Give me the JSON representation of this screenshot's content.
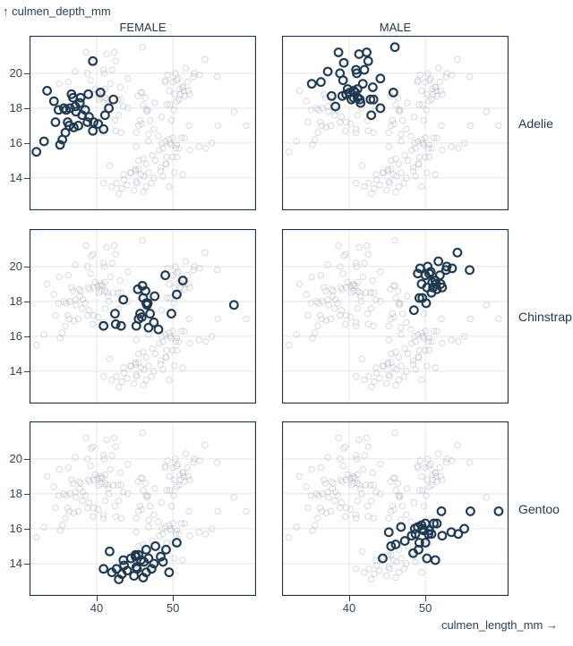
{
  "chart_data": {
    "type": "scatter",
    "description": "Faceted scatter plot of penguin culmen depth vs culmen length, faceted by sex (columns) and species (rows); each panel shows all penguins in light gray and the facet subset highlighted in dark navy rings",
    "x_axis": {
      "label": "culmen_length_mm →",
      "ticks": [
        40,
        50
      ],
      "domain": [
        31.2,
        60.9
      ]
    },
    "y_axis": {
      "label": "↑ culmen_depth_mm",
      "ticks": [
        14,
        16,
        18,
        20
      ],
      "domain": [
        12.15,
        22.15
      ]
    },
    "facets": {
      "columns": [
        "FEMALE",
        "MALE"
      ],
      "rows": [
        "Adelie",
        "Chinstrap",
        "Gentoo"
      ]
    },
    "style": {
      "highlight_color": "#1e384f",
      "background_point_color": "#aeb4bf",
      "grid_color": "#e2e5e9",
      "border_color": "#1c334a",
      "text_color": "#25384c"
    },
    "points_format": [
      "culmen_length_mm",
      "culmen_depth_mm"
    ],
    "groups": [
      {
        "species": "Adelie",
        "sex": "FEMALE",
        "points": [
          [
            32.1,
            15.5
          ],
          [
            33.1,
            16.1
          ],
          [
            33.5,
            19.0
          ],
          [
            34.4,
            18.4
          ],
          [
            34.6,
            17.2
          ],
          [
            35.0,
            17.9
          ],
          [
            35.2,
            15.9
          ],
          [
            35.5,
            16.2
          ],
          [
            35.7,
            18.0
          ],
          [
            35.9,
            16.6
          ],
          [
            36.0,
            17.9
          ],
          [
            36.2,
            17.2
          ],
          [
            36.4,
            17.0
          ],
          [
            36.5,
            18.0
          ],
          [
            36.7,
            18.8
          ],
          [
            36.9,
            18.6
          ],
          [
            37.0,
            16.9
          ],
          [
            37.2,
            18.1
          ],
          [
            37.3,
            17.8
          ],
          [
            37.6,
            17.0
          ],
          [
            37.8,
            18.3
          ],
          [
            37.9,
            18.6
          ],
          [
            38.1,
            17.6
          ],
          [
            38.5,
            17.9
          ],
          [
            38.8,
            17.2
          ],
          [
            38.9,
            18.8
          ],
          [
            39.0,
            17.5
          ],
          [
            39.5,
            16.7
          ],
          [
            39.5,
            20.7
          ],
          [
            39.6,
            17.2
          ],
          [
            40.2,
            17.1
          ],
          [
            40.5,
            18.9
          ],
          [
            40.9,
            16.8
          ],
          [
            41.1,
            17.6
          ],
          [
            41.6,
            18.0
          ],
          [
            42.2,
            18.5
          ]
        ]
      },
      {
        "species": "Adelie",
        "sex": "MALE",
        "points": [
          [
            35.1,
            19.4
          ],
          [
            36.3,
            19.5
          ],
          [
            37.2,
            20.1
          ],
          [
            37.7,
            18.7
          ],
          [
            38.2,
            18.1
          ],
          [
            38.6,
            21.2
          ],
          [
            38.8,
            20.0
          ],
          [
            39.1,
            18.7
          ],
          [
            39.2,
            19.6
          ],
          [
            39.3,
            20.6
          ],
          [
            39.6,
            18.8
          ],
          [
            39.8,
            19.1
          ],
          [
            40.1,
            18.9
          ],
          [
            40.3,
            18.5
          ],
          [
            40.6,
            18.6
          ],
          [
            40.6,
            19.0
          ],
          [
            40.8,
            18.9
          ],
          [
            40.9,
            20.2
          ],
          [
            41.0,
            20.0
          ],
          [
            41.1,
            18.6
          ],
          [
            41.3,
            21.1
          ],
          [
            41.4,
            18.5
          ],
          [
            41.5,
            18.3
          ],
          [
            41.8,
            19.4
          ],
          [
            42.0,
            20.2
          ],
          [
            42.3,
            21.2
          ],
          [
            42.5,
            20.7
          ],
          [
            42.8,
            18.5
          ],
          [
            43.1,
            19.2
          ],
          [
            43.2,
            18.5
          ],
          [
            44.1,
            19.7
          ],
          [
            44.1,
            18.0
          ],
          [
            45.8,
            18.9
          ],
          [
            46.0,
            21.5
          ],
          [
            42.9,
            17.6
          ],
          [
            41.1,
            19.1
          ]
        ]
      },
      {
        "species": "Chinstrap",
        "sex": "FEMALE",
        "points": [
          [
            40.9,
            16.6
          ],
          [
            42.4,
            17.3
          ],
          [
            42.5,
            16.7
          ],
          [
            43.2,
            16.6
          ],
          [
            43.5,
            18.1
          ],
          [
            45.2,
            16.6
          ],
          [
            45.4,
            18.7
          ],
          [
            45.5,
            17.0
          ],
          [
            45.7,
            17.3
          ],
          [
            45.9,
            17.1
          ],
          [
            46.0,
            18.9
          ],
          [
            46.1,
            18.2
          ],
          [
            46.4,
            18.6
          ],
          [
            46.5,
            17.9
          ],
          [
            46.6,
            17.8
          ],
          [
            46.7,
            17.9
          ],
          [
            46.8,
            16.5
          ],
          [
            47.0,
            17.3
          ],
          [
            47.5,
            16.8
          ],
          [
            47.6,
            18.3
          ],
          [
            48.1,
            16.4
          ],
          [
            49.0,
            19.5
          ],
          [
            49.8,
            17.3
          ],
          [
            50.5,
            18.4
          ],
          [
            51.3,
            19.2
          ],
          [
            58.0,
            17.8
          ]
        ]
      },
      {
        "species": "Chinstrap",
        "sex": "MALE",
        "points": [
          [
            48.5,
            17.5
          ],
          [
            49.0,
            19.6
          ],
          [
            49.2,
            18.2
          ],
          [
            49.3,
            19.9
          ],
          [
            49.5,
            19.0
          ],
          [
            49.6,
            18.2
          ],
          [
            50.0,
            19.5
          ],
          [
            50.1,
            17.9
          ],
          [
            50.2,
            18.8
          ],
          [
            50.3,
            20.0
          ],
          [
            50.5,
            19.6
          ],
          [
            50.7,
            19.7
          ],
          [
            50.8,
            18.5
          ],
          [
            50.9,
            19.1
          ],
          [
            51.0,
            18.8
          ],
          [
            51.3,
            19.2
          ],
          [
            51.4,
            19.0
          ],
          [
            51.5,
            18.7
          ],
          [
            51.7,
            20.3
          ],
          [
            51.9,
            19.5
          ],
          [
            52.0,
            19.0
          ],
          [
            52.2,
            18.8
          ],
          [
            52.7,
            19.8
          ],
          [
            52.8,
            20.0
          ],
          [
            53.5,
            19.9
          ],
          [
            54.2,
            20.8
          ],
          [
            55.8,
            19.8
          ]
        ]
      },
      {
        "species": "Gentoo",
        "sex": "FEMALE",
        "points": [
          [
            40.9,
            13.7
          ],
          [
            41.7,
            14.7
          ],
          [
            42.0,
            13.5
          ],
          [
            42.6,
            13.7
          ],
          [
            42.9,
            13.1
          ],
          [
            43.3,
            13.4
          ],
          [
            43.5,
            14.2
          ],
          [
            43.6,
            13.9
          ],
          [
            44.0,
            13.6
          ],
          [
            44.5,
            14.3
          ],
          [
            44.9,
            13.3
          ],
          [
            45.1,
            14.5
          ],
          [
            45.2,
            13.8
          ],
          [
            45.3,
            13.7
          ],
          [
            45.5,
            14.5
          ],
          [
            45.8,
            14.2
          ],
          [
            46.1,
            13.2
          ],
          [
            46.2,
            14.1
          ],
          [
            46.5,
            13.5
          ],
          [
            46.8,
            14.3
          ],
          [
            47.2,
            13.7
          ],
          [
            47.5,
            14.0
          ],
          [
            47.7,
            15.0
          ],
          [
            48.4,
            14.4
          ],
          [
            48.7,
            14.1
          ],
          [
            49.1,
            14.8
          ],
          [
            49.5,
            13.5
          ],
          [
            50.5,
            15.2
          ],
          [
            45.1,
            14.4
          ],
          [
            46.5,
            14.8
          ]
        ]
      },
      {
        "species": "Gentoo",
        "sex": "MALE",
        "points": [
          [
            44.4,
            14.3
          ],
          [
            45.2,
            15.8
          ],
          [
            45.5,
            15.0
          ],
          [
            46.1,
            15.1
          ],
          [
            46.8,
            16.1
          ],
          [
            47.3,
            15.3
          ],
          [
            48.2,
            15.6
          ],
          [
            48.4,
            14.6
          ],
          [
            48.6,
            16.0
          ],
          [
            48.7,
            15.7
          ],
          [
            49.0,
            16.1
          ],
          [
            49.1,
            14.8
          ],
          [
            49.2,
            15.2
          ],
          [
            49.5,
            16.2
          ],
          [
            49.6,
            16.0
          ],
          [
            49.8,
            15.9
          ],
          [
            50.0,
            15.2
          ],
          [
            50.0,
            16.3
          ],
          [
            50.2,
            14.3
          ],
          [
            50.4,
            15.7
          ],
          [
            50.5,
            15.9
          ],
          [
            50.8,
            15.7
          ],
          [
            51.1,
            16.3
          ],
          [
            51.3,
            14.2
          ],
          [
            51.5,
            16.3
          ],
          [
            52.1,
            17.0
          ],
          [
            52.2,
            15.6
          ],
          [
            53.4,
            15.8
          ],
          [
            54.3,
            15.7
          ],
          [
            55.1,
            16.0
          ],
          [
            55.9,
            17.0
          ],
          [
            59.6,
            17.0
          ]
        ]
      }
    ]
  }
}
